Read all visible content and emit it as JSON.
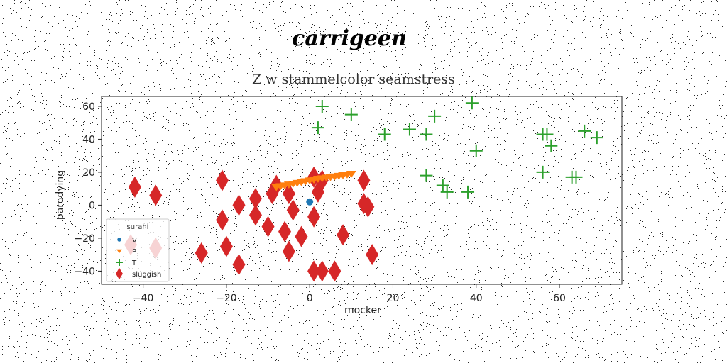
{
  "chart_data": {
    "type": "scatter",
    "suptitle": "carrigeen",
    "title": "Z w stammelcolor seamstress",
    "xlabel": "mocker",
    "ylabel": "parodying",
    "xlim": [
      -50,
      75
    ],
    "ylim": [
      -48,
      66
    ],
    "xticks": [
      -40,
      -20,
      0,
      20,
      40,
      60
    ],
    "yticks": [
      -40,
      -20,
      0,
      20,
      40,
      60
    ],
    "grid": false,
    "legend": {
      "title": "surahi",
      "placement": "lower-left"
    },
    "colors": {
      "V": "#1f77b4",
      "P": "#ff7f0e",
      "T": "#2ca02c",
      "sluggish": "#d62728"
    },
    "series": [
      {
        "name": "V",
        "marker": "circle",
        "points": [
          [
            0,
            2
          ]
        ]
      },
      {
        "name": "P",
        "marker": "triangle-down",
        "points": [
          [
            -8,
            11
          ],
          [
            -7,
            11.5
          ],
          [
            -6,
            12
          ],
          [
            -5,
            12.5
          ],
          [
            -4,
            13
          ],
          [
            -3,
            13.5
          ],
          [
            -2,
            14
          ],
          [
            -1,
            14.5
          ],
          [
            0,
            15
          ],
          [
            1,
            15.5
          ],
          [
            2,
            16
          ],
          [
            3,
            16.3
          ],
          [
            4,
            16.7
          ],
          [
            5,
            17
          ],
          [
            6,
            17.4
          ],
          [
            7,
            17.8
          ],
          [
            8,
            18.2
          ],
          [
            9,
            18.6
          ],
          [
            10,
            19
          ]
        ]
      },
      {
        "name": "T",
        "marker": "plus",
        "points": [
          [
            3,
            60
          ],
          [
            10,
            55
          ],
          [
            2,
            47
          ],
          [
            18,
            43
          ],
          [
            24,
            46
          ],
          [
            28,
            43
          ],
          [
            30,
            54
          ],
          [
            39,
            62
          ],
          [
            40,
            33
          ],
          [
            56,
            43
          ],
          [
            57,
            43
          ],
          [
            58,
            36
          ],
          [
            66,
            45
          ],
          [
            69,
            41
          ],
          [
            28,
            18
          ],
          [
            32,
            12
          ],
          [
            33,
            8
          ],
          [
            38,
            8
          ],
          [
            56,
            20
          ],
          [
            63,
            17
          ],
          [
            64,
            17
          ]
        ]
      },
      {
        "name": "sluggish",
        "marker": "diamond",
        "points": [
          [
            -42,
            11
          ],
          [
            -37,
            6
          ],
          [
            -21,
            15
          ],
          [
            -17,
            0
          ],
          [
            -13,
            4
          ],
          [
            -13,
            -6
          ],
          [
            -9,
            7
          ],
          [
            -8,
            12
          ],
          [
            -5,
            7
          ],
          [
            -4,
            -3
          ],
          [
            -21,
            -9
          ],
          [
            -10,
            -13
          ],
          [
            -6,
            -16
          ],
          [
            -2,
            -19
          ],
          [
            -20,
            -25
          ],
          [
            -5,
            -28
          ],
          [
            -26,
            -29
          ],
          [
            -17,
            -36
          ],
          [
            1,
            17
          ],
          [
            3,
            15
          ],
          [
            2,
            8
          ],
          [
            1,
            -7
          ],
          [
            13,
            15
          ],
          [
            13,
            1
          ],
          [
            14,
            -1
          ],
          [
            8,
            -18
          ],
          [
            15,
            -30
          ],
          [
            1,
            -40
          ],
          [
            3,
            -40
          ],
          [
            6,
            -40
          ],
          [
            -43,
            -24
          ],
          [
            -37,
            -26
          ]
        ]
      }
    ]
  }
}
